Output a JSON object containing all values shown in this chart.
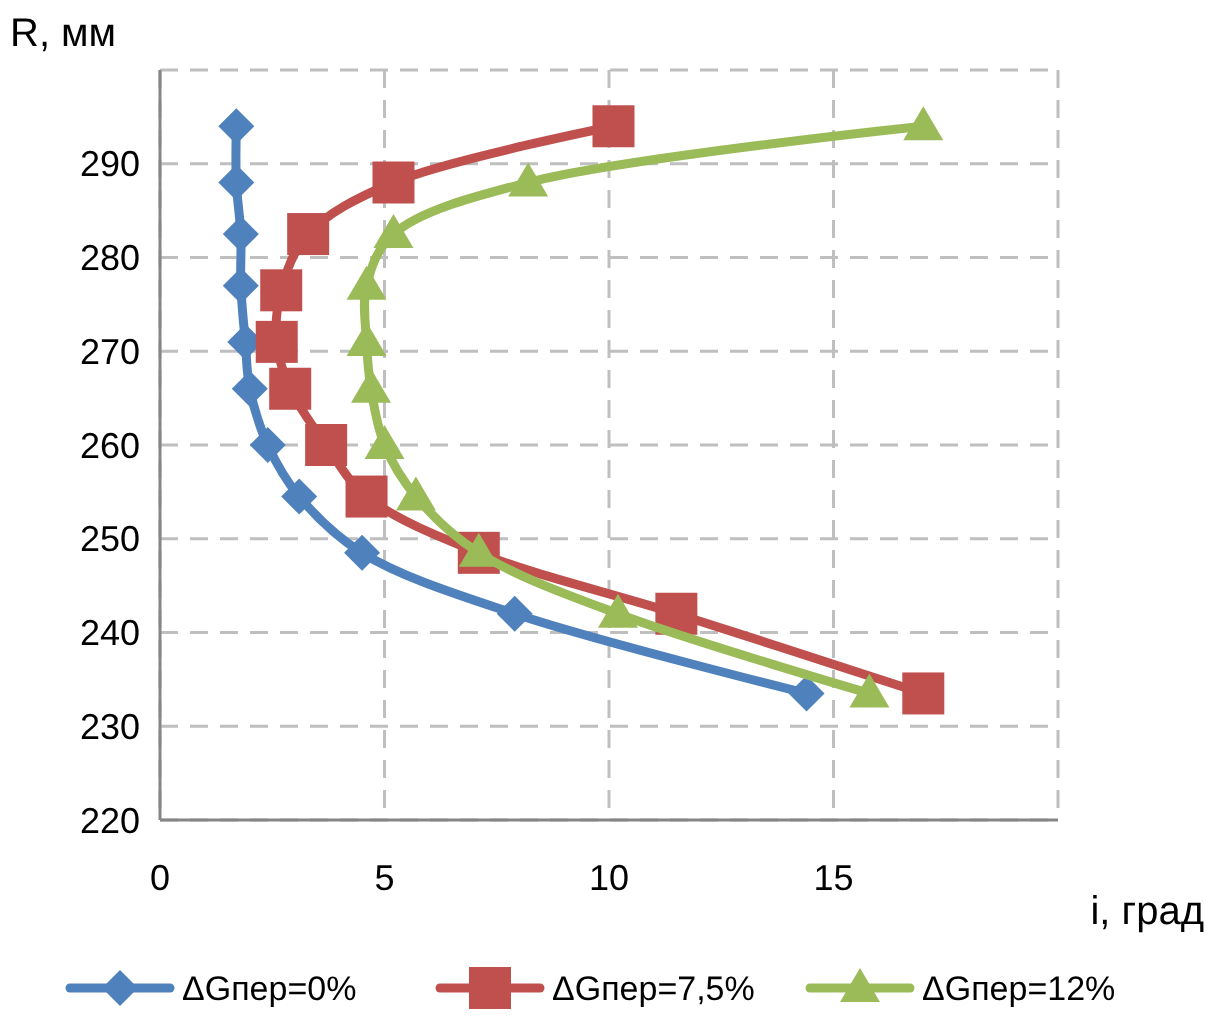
{
  "chart_data": {
    "type": "line",
    "xlabel": "i, град",
    "ylabel": "R, мм",
    "xlim": [
      0,
      20
    ],
    "xticks": [
      0,
      5,
      10,
      15,
      {
        "value": 20,
        "label": null
      }
    ],
    "ylim": [
      220,
      300
    ],
    "yticks": [
      220,
      230,
      240,
      250,
      260,
      270,
      280,
      290,
      {
        "value": 300,
        "label": null
      }
    ],
    "grid": true,
    "legend": "bottom",
    "series": [
      {
        "name": "ΔGпер=0%",
        "color": "#4f81bd",
        "marker": "diamond",
        "x": [
          1.7,
          1.7,
          1.8,
          1.8,
          1.9,
          2.0,
          2.4,
          3.1,
          4.5,
          7.9,
          14.4
        ],
        "values": [
          294,
          288,
          282.5,
          277,
          271,
          266,
          260,
          254.5,
          248.5,
          242,
          233.5
        ]
      },
      {
        "name": "ΔGпер=7,5%",
        "color": "#c0504d",
        "marker": "square",
        "x": [
          10.1,
          5.2,
          3.3,
          2.7,
          2.6,
          2.9,
          3.7,
          4.6,
          7.1,
          11.5,
          17.0
        ],
        "values": [
          294,
          288,
          282.5,
          276.5,
          271,
          266,
          260,
          254.5,
          248.5,
          242,
          233.5
        ]
      },
      {
        "name": "ΔGпер=12%",
        "color": "#9bbb59",
        "marker": "triangle",
        "x": [
          17.0,
          8.2,
          5.2,
          4.6,
          4.6,
          4.7,
          5.0,
          5.7,
          7.1,
          10.2,
          15.8
        ],
        "values": [
          294,
          288,
          282.5,
          277,
          271,
          266,
          260,
          254.5,
          248.5,
          242,
          233.5
        ]
      }
    ]
  }
}
